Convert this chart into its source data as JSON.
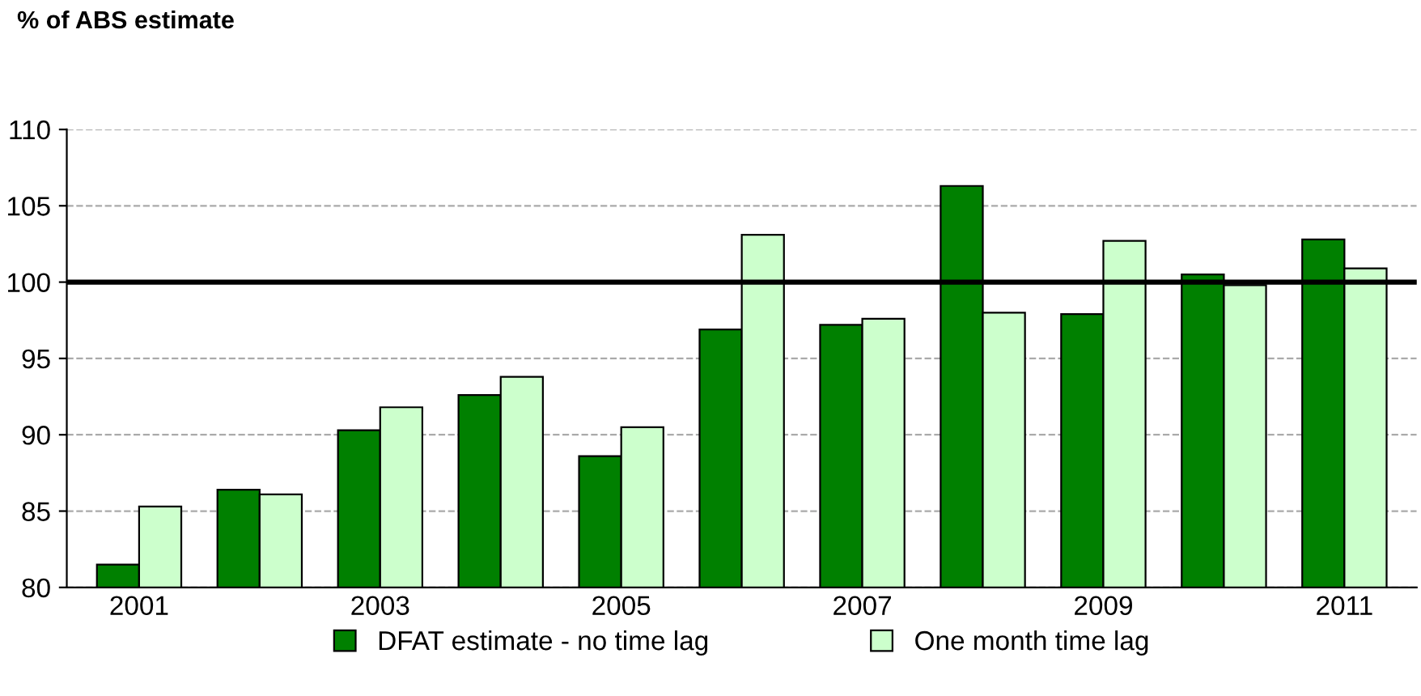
{
  "chart_data": {
    "type": "bar",
    "ylabel": "% of ABS estimate",
    "categories": [
      "2001",
      null,
      "2003",
      null,
      "2005",
      null,
      "2007",
      null,
      "2009",
      null,
      "2011"
    ],
    "series": [
      {
        "name": "DFAT estimate - no time lag",
        "color": "#008000",
        "values": [
          81.5,
          86.4,
          90.3,
          92.6,
          88.6,
          96.9,
          97.2,
          106.3,
          97.9,
          100.5,
          102.8
        ]
      },
      {
        "name": "One month time lag",
        "color": "#ccffcc",
        "values": [
          85.3,
          86.1,
          91.8,
          93.8,
          90.5,
          103.1,
          97.6,
          98.0,
          102.7,
          99.8,
          100.9
        ]
      }
    ],
    "ylim": [
      80,
      110
    ],
    "yticks": [
      80,
      85,
      90,
      95,
      100,
      105,
      110
    ],
    "grid": "y",
    "legend": "bottom",
    "ref_lines": [
      {
        "axis": "y",
        "value": 100,
        "color": "#000000"
      }
    ]
  }
}
